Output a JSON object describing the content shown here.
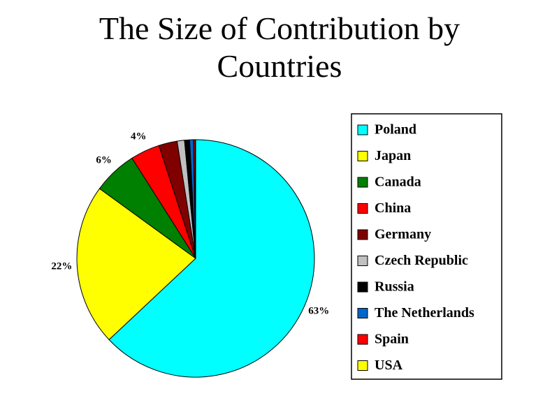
{
  "chart_data": {
    "type": "pie",
    "title": "The Size of Contribution by Countries",
    "categories": [
      "Poland",
      "Japan",
      "Canada",
      "China",
      "Germany",
      "Czech Republic",
      "Russia",
      "The Netherlands",
      "Spain",
      "USA"
    ],
    "values": [
      63,
      22,
      6,
      4,
      2.5,
      1,
      0.7,
      0.5,
      0.2,
      0.1
    ],
    "value_labels": [
      "63%",
      "22%",
      "6%",
      "4%",
      null,
      null,
      null,
      null,
      null,
      null
    ],
    "colors": [
      "#00ffff",
      "#ffff00",
      "#008000",
      "#ff0000",
      "#800000",
      "#c0c0c0",
      "#000000",
      "#0066cc",
      "#ff0000",
      "#ffff00"
    ],
    "legend": "right"
  }
}
